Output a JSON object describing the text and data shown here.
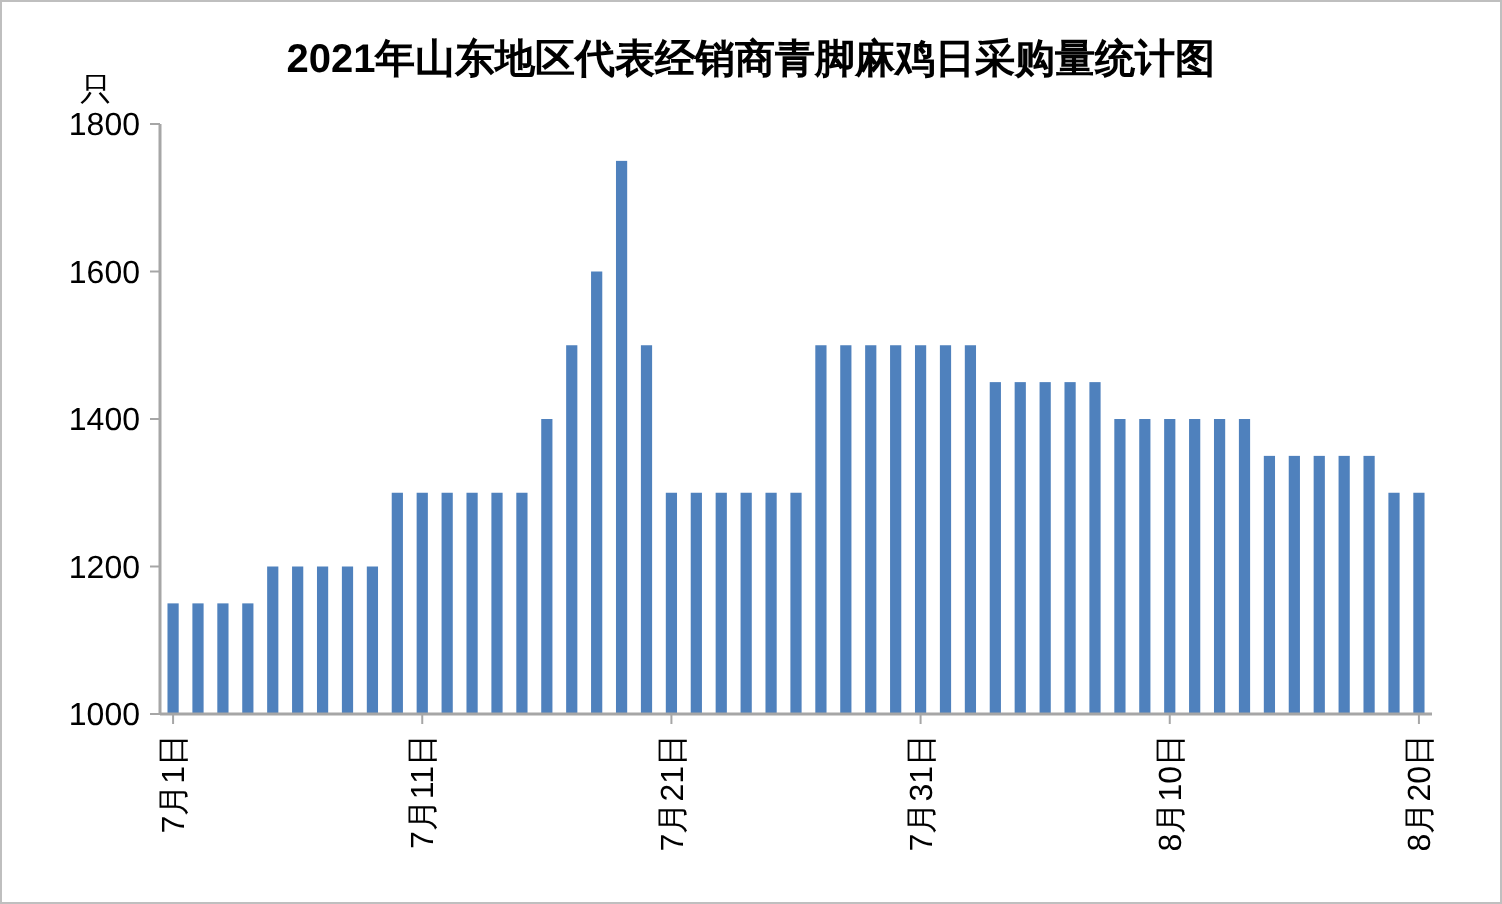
{
  "chart_data": {
    "type": "bar",
    "title": "2021年山东地区代表经销商青脚麻鸡日采购量统计图",
    "ylabel": "只",
    "categories": [
      "7月1日",
      null,
      null,
      null,
      null,
      null,
      null,
      null,
      null,
      null,
      "7月11日",
      null,
      null,
      null,
      null,
      null,
      null,
      null,
      null,
      null,
      "7月21日",
      null,
      null,
      null,
      null,
      null,
      null,
      null,
      null,
      null,
      "7月31日",
      null,
      null,
      null,
      null,
      null,
      null,
      null,
      null,
      null,
      "8月10日",
      null,
      null,
      null,
      null,
      null,
      null,
      null,
      null,
      null,
      "8月20日"
    ],
    "values": [
      1150,
      1150,
      1150,
      1150,
      1200,
      1200,
      1200,
      1200,
      1200,
      1300,
      1300,
      1300,
      1300,
      1300,
      1300,
      1400,
      1500,
      1600,
      1750,
      1500,
      1300,
      1300,
      1300,
      1300,
      1300,
      1300,
      1500,
      1500,
      1500,
      1500,
      1500,
      1500,
      1500,
      1450,
      1450,
      1450,
      1450,
      1450,
      1400,
      1400,
      1400,
      1400,
      1400,
      1400,
      1350,
      1350,
      1350,
      1350,
      1350,
      1300,
      1300
    ],
    "color": "#4f81bd",
    "ylim": [
      1000,
      1800
    ],
    "yticks": [
      1000,
      1200,
      1400,
      1600,
      1800
    ],
    "grid": false
  }
}
